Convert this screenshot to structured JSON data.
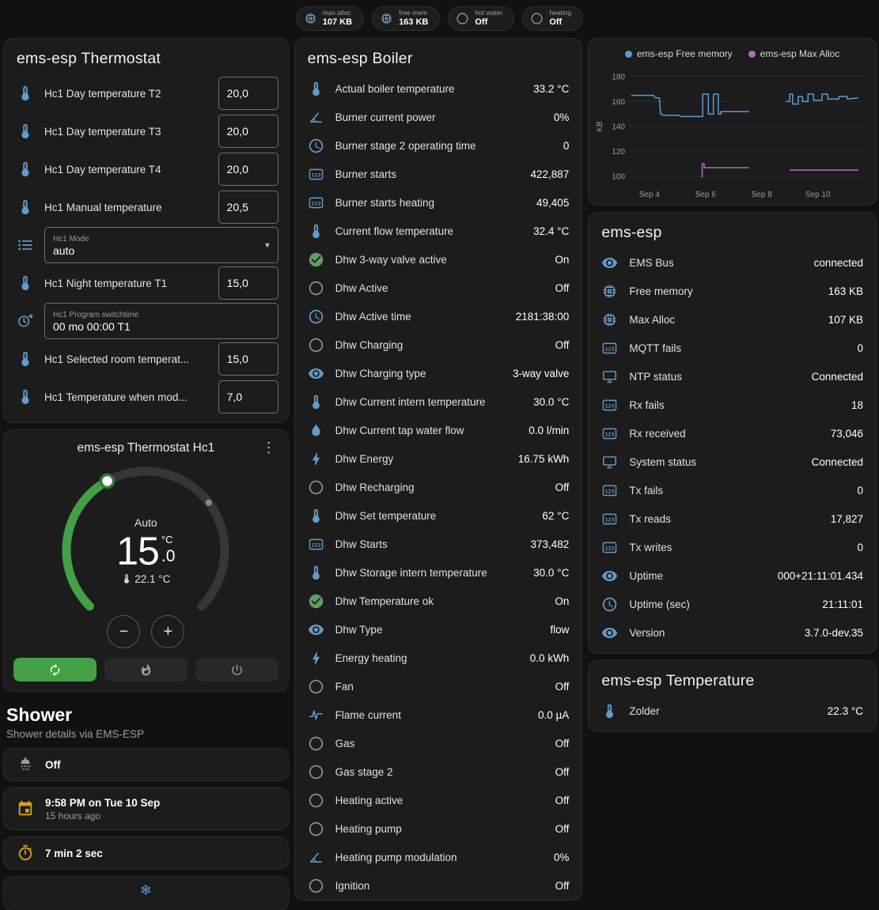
{
  "colors": {
    "background": "#111111",
    "card": "#1c1c1c",
    "accent_green": "#43a047",
    "handle_green": "#2e7d32",
    "icon_blue": "#639bc9",
    "icon_gray": "#8f8f8f",
    "icon_green": "#5f9e62",
    "icon_amber": "#d9a514",
    "icon_shower": "#9aa096",
    "icon_snow": "#5b9bd5"
  },
  "topbar": {
    "chips": [
      {
        "icon": "memory",
        "label": "max alloc",
        "value": "107 KB"
      },
      {
        "icon": "memory",
        "label": "free mem",
        "value": "163 KB"
      },
      {
        "icon": "circle-outline",
        "label": "hot water",
        "value": "Off"
      },
      {
        "icon": "circle-outline",
        "label": "heating",
        "value": "Off"
      }
    ]
  },
  "thermostat_card": {
    "title": "ems-esp Thermostat",
    "rows": [
      {
        "type": "number",
        "icon": "thermometer",
        "label": "Hc1 Day temperature T2",
        "value": "20,0"
      },
      {
        "type": "number",
        "icon": "thermometer",
        "label": "Hc1 Day temperature T3",
        "value": "20,0"
      },
      {
        "type": "number",
        "icon": "thermometer",
        "label": "Hc1 Day temperature T4",
        "value": "20,0"
      },
      {
        "type": "number",
        "icon": "thermometer",
        "label": "Hc1 Manual temperature",
        "value": "20,5"
      },
      {
        "type": "select",
        "icon": "list",
        "label": "Hc1 Mode",
        "value": "auto"
      },
      {
        "type": "number",
        "icon": "thermometer",
        "label": "Hc1 Night temperature T1",
        "value": "15,0"
      },
      {
        "type": "text",
        "icon": "clock-switch",
        "label": "Hc1 Program switchtime",
        "value": "00 mo 00:00 T1"
      },
      {
        "type": "number",
        "icon": "thermometer",
        "label": "Hc1 Selected room temperat...",
        "value": "15,0"
      },
      {
        "type": "number",
        "icon": "thermometer",
        "label": "Hc1 Temperature when mod...",
        "value": "7,0"
      }
    ]
  },
  "hc1_card": {
    "title": "ems-esp Thermostat Hc1",
    "mode_label": "Auto",
    "target_int": "15",
    "target_frac": ".0",
    "unit": "°C",
    "current": "22.1 °C",
    "modes": [
      {
        "name": "auto",
        "icon": "autorenew",
        "active": true
      },
      {
        "name": "heat",
        "icon": "fire",
        "active": false
      },
      {
        "name": "off",
        "icon": "power",
        "active": false
      }
    ]
  },
  "shower": {
    "title": "Shower",
    "subtitle": "Shower details via EMS-ESP",
    "cards": [
      {
        "icon": "shower",
        "primary": "Off",
        "secondary": ""
      },
      {
        "icon": "calendar",
        "primary": "9:58 PM on Tue 10 Sep",
        "secondary": "15 hours ago"
      },
      {
        "icon": "timer",
        "primary": "7 min 2 sec",
        "secondary": ""
      }
    ],
    "snowflake_glyph": "❄"
  },
  "boiler_card": {
    "title": "ems-esp Boiler",
    "rows": [
      {
        "icon": "thermometer",
        "label": "Actual boiler temperature",
        "value": "33.2 °C"
      },
      {
        "icon": "angle",
        "label": "Burner current power",
        "value": "0%"
      },
      {
        "icon": "clock",
        "label": "Burner stage 2 operating time",
        "value": "0"
      },
      {
        "icon": "counter",
        "label": "Burner starts",
        "value": "422,887"
      },
      {
        "icon": "counter",
        "label": "Burner starts heating",
        "value": "49,405"
      },
      {
        "icon": "thermometer",
        "label": "Current flow temperature",
        "value": "32.4 °C"
      },
      {
        "icon": "check-circle",
        "label": "Dhw 3-way valve active",
        "value": "On"
      },
      {
        "icon": "circle-outline",
        "label": "Dhw Active",
        "value": "Off"
      },
      {
        "icon": "clock",
        "label": "Dhw Active time",
        "value": "2181:38:00"
      },
      {
        "icon": "circle-outline",
        "label": "Dhw Charging",
        "value": "Off"
      },
      {
        "icon": "eye",
        "label": "Dhw Charging type",
        "value": "3-way valve"
      },
      {
        "icon": "thermometer",
        "label": "Dhw Current intern temperature",
        "value": "30.0 °C"
      },
      {
        "icon": "water",
        "label": "Dhw Current tap water flow",
        "value": "0.0 l/min"
      },
      {
        "icon": "bolt",
        "label": "Dhw Energy",
        "value": "16.75 kWh"
      },
      {
        "icon": "circle-outline",
        "label": "Dhw Recharging",
        "value": "Off"
      },
      {
        "icon": "thermometer",
        "label": "Dhw Set temperature",
        "value": "62 °C"
      },
      {
        "icon": "counter",
        "label": "Dhw Starts",
        "value": "373,482"
      },
      {
        "icon": "thermometer",
        "label": "Dhw Storage intern temperature",
        "value": "30.0 °C"
      },
      {
        "icon": "check-circle",
        "label": "Dhw Temperature ok",
        "value": "On"
      },
      {
        "icon": "eye",
        "label": "Dhw Type",
        "value": "flow"
      },
      {
        "icon": "bolt",
        "label": "Energy heating",
        "value": "0.0 kWh"
      },
      {
        "icon": "circle-outline",
        "label": "Fan",
        "value": "Off"
      },
      {
        "icon": "current",
        "label": "Flame current",
        "value": "0.0 µA"
      },
      {
        "icon": "circle-outline",
        "label": "Gas",
        "value": "Off"
      },
      {
        "icon": "circle-outline",
        "label": "Gas stage 2",
        "value": "Off"
      },
      {
        "icon": "circle-outline",
        "label": "Heating active",
        "value": "Off"
      },
      {
        "icon": "circle-outline",
        "label": "Heating pump",
        "value": "Off"
      },
      {
        "icon": "angle",
        "label": "Heating pump modulation",
        "value": "0%"
      },
      {
        "icon": "circle-outline",
        "label": "Ignition",
        "value": "Off"
      }
    ]
  },
  "esp_card": {
    "title": "ems-esp",
    "rows": [
      {
        "icon": "eye",
        "label": "EMS Bus",
        "value": "connected"
      },
      {
        "icon": "memory",
        "label": "Free memory",
        "value": "163 KB"
      },
      {
        "icon": "memory",
        "label": "Max Alloc",
        "value": "107 KB"
      },
      {
        "icon": "counter",
        "label": "MQTT fails",
        "value": "0"
      },
      {
        "icon": "network",
        "label": "NTP status",
        "value": "Connected"
      },
      {
        "icon": "counter",
        "label": "Rx fails",
        "value": "18"
      },
      {
        "icon": "counter",
        "label": "Rx received",
        "value": "73,046"
      },
      {
        "icon": "network",
        "label": "System status",
        "value": "Connected"
      },
      {
        "icon": "counter",
        "label": "Tx fails",
        "value": "0"
      },
      {
        "icon": "counter",
        "label": "Tx reads",
        "value": "17,827"
      },
      {
        "icon": "counter",
        "label": "Tx writes",
        "value": "0"
      },
      {
        "icon": "eye",
        "label": "Uptime",
        "value": "000+21:11:01.434"
      },
      {
        "icon": "clock",
        "label": "Uptime (sec)",
        "value": "21:11:01"
      },
      {
        "icon": "eye",
        "label": "Version",
        "value": "3.7.0-dev.35"
      }
    ]
  },
  "temp_card": {
    "title": "ems-esp Temperature",
    "rows": [
      {
        "icon": "thermometer",
        "label": "Zolder",
        "value": "22.3 °C"
      }
    ]
  },
  "chart_data": {
    "type": "line",
    "title": "",
    "xlabel": "",
    "ylabel": "KB",
    "ylim": [
      95,
      185
    ],
    "yticks": [
      100,
      120,
      140,
      160,
      180
    ],
    "xlim": [
      3.3,
      11.7
    ],
    "xticks": [
      {
        "pos": 4,
        "label": "Sep 4"
      },
      {
        "pos": 6,
        "label": "Sep 6"
      },
      {
        "pos": 8,
        "label": "Sep 8"
      },
      {
        "pos": 10,
        "label": "Sep 10"
      }
    ],
    "grid": "horizontal",
    "legend_position": "top",
    "series": [
      {
        "name": "ems-esp Free memory",
        "color": "#5b9bd5",
        "segments": [
          [
            [
              3.35,
              165
            ],
            [
              4.15,
              165
            ],
            [
              4.2,
              163
            ],
            [
              4.35,
              163
            ],
            [
              4.4,
              150
            ],
            [
              4.5,
              149
            ],
            [
              5.05,
              149
            ],
            [
              5.1,
              148
            ],
            [
              5.9,
              148
            ],
            [
              5.9,
              166
            ],
            [
              6.1,
              166
            ],
            [
              6.1,
              150
            ],
            [
              6.28,
              150
            ],
            [
              6.28,
              166
            ],
            [
              6.45,
              166
            ],
            [
              6.45,
              150
            ],
            [
              6.55,
              150
            ],
            [
              6.55,
              152
            ],
            [
              7.55,
              152
            ]
          ],
          [
            [
              8.85,
              160
            ],
            [
              9.0,
              160
            ],
            [
              9.0,
              166
            ],
            [
              9.1,
              166
            ],
            [
              9.1,
              158
            ],
            [
              9.3,
              158
            ],
            [
              9.3,
              164
            ],
            [
              9.45,
              164
            ],
            [
              9.45,
              160
            ],
            [
              9.65,
              160
            ],
            [
              9.65,
              166
            ],
            [
              9.85,
              166
            ],
            [
              9.85,
              161
            ],
            [
              10.15,
              161
            ],
            [
              10.15,
              166
            ],
            [
              10.35,
              166
            ],
            [
              10.35,
              162
            ],
            [
              10.75,
              162
            ],
            [
              10.75,
              164
            ],
            [
              11.05,
              164
            ],
            [
              11.05,
              162
            ],
            [
              11.45,
              163
            ]
          ]
        ]
      },
      {
        "name": "ems-esp Max Alloc",
        "color": "#b36ac4",
        "segments": [
          [
            [
              5.88,
              99
            ],
            [
              5.88,
              110
            ],
            [
              5.95,
              110
            ],
            [
              5.95,
              107
            ],
            [
              7.55,
              107
            ]
          ],
          [
            [
              9.0,
              105
            ],
            [
              11.45,
              105
            ]
          ]
        ]
      }
    ]
  }
}
